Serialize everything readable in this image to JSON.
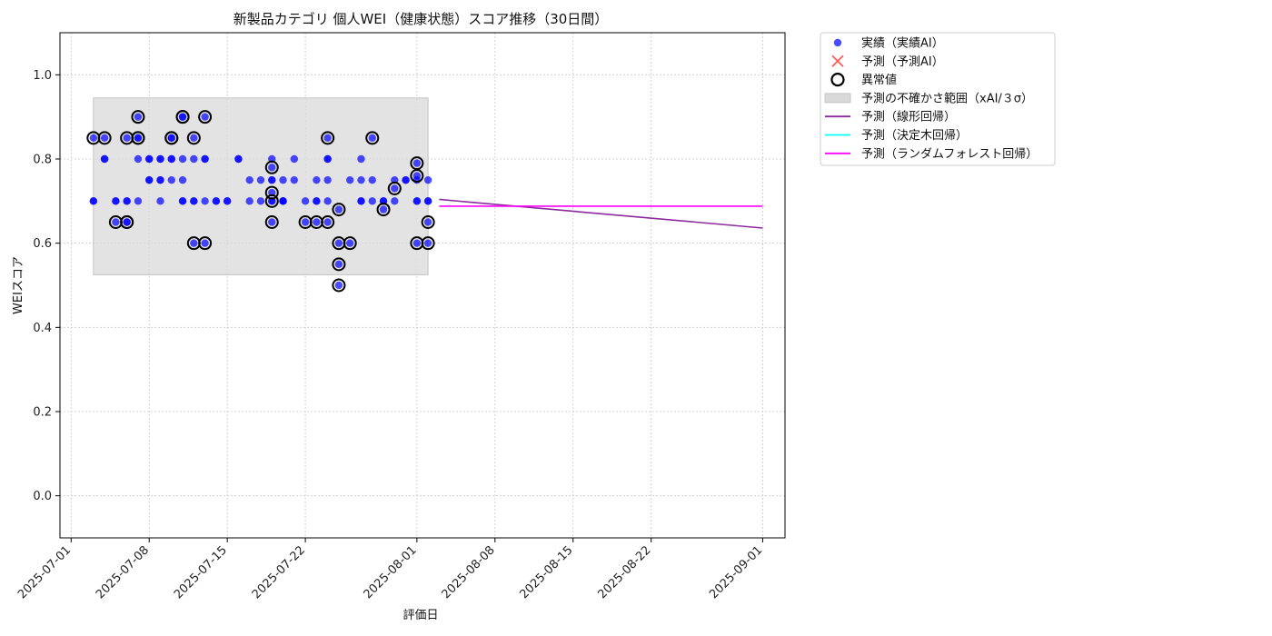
{
  "chart_data": {
    "type": "scatter",
    "title": "新製品カテゴリ 個人WEI（健康状態）スコア推移（30日間）",
    "xlabel": "評価日",
    "ylabel": "WEIスコア",
    "xlim": [
      "2025-06-30",
      "2025-09-03"
    ],
    "ylim": [
      -0.1,
      1.1
    ],
    "x_ticks": [
      "2025-07-01",
      "2025-07-08",
      "2025-07-15",
      "2025-07-22",
      "2025-08-01",
      "2025-08-08",
      "2025-08-15",
      "2025-08-22",
      "2025-09-01"
    ],
    "y_ticks": [
      0.0,
      0.2,
      0.4,
      0.6,
      0.8,
      1.0
    ],
    "y_tick_labels": [
      "0.0",
      "0.2",
      "0.4",
      "0.6",
      "0.8",
      "1.0"
    ],
    "grid": true,
    "legend_position": "outside-top-right",
    "colors": {
      "actual": "#0000ff",
      "prediction_ai": "#ff3333",
      "anomaly": "#000000",
      "uncertainty": "#d9d9d9",
      "linear": "#8b2a9e",
      "tree": "#00ffff",
      "forest": "#ff00ff"
    },
    "legend": [
      {
        "key": "actual",
        "label": "実績（実績AI）"
      },
      {
        "key": "prediction_ai",
        "label": "予測（予測AI）"
      },
      {
        "key": "anomaly",
        "label": "異常値"
      },
      {
        "key": "uncertainty",
        "label": "予測の不確かさ範囲（xAI/３σ）"
      },
      {
        "key": "linear",
        "label": "予測（線形回帰）"
      },
      {
        "key": "tree",
        "label": "予測（決定木回帰）"
      },
      {
        "key": "forest",
        "label": "予測（ランダムフォレスト回帰）"
      }
    ],
    "uncertainty_band": {
      "x": [
        "2025-07-03",
        "2025-08-02"
      ],
      "y": [
        0.525,
        0.945
      ]
    },
    "series": [
      {
        "key": "actual",
        "points": [
          [
            "2025-07-03",
            0.7
          ],
          [
            "2025-07-03",
            0.85
          ],
          [
            "2025-07-03",
            0.7
          ],
          [
            "2025-07-04",
            0.8
          ],
          [
            "2025-07-04",
            0.8
          ],
          [
            "2025-07-04",
            0.85
          ],
          [
            "2025-07-05",
            0.7
          ],
          [
            "2025-07-05",
            0.65
          ],
          [
            "2025-07-05",
            0.7
          ],
          [
            "2025-07-06",
            0.7
          ],
          [
            "2025-07-06",
            0.65
          ],
          [
            "2025-07-06",
            0.85
          ],
          [
            "2025-07-06",
            0.65
          ],
          [
            "2025-07-06",
            0.7
          ],
          [
            "2025-07-07",
            0.85
          ],
          [
            "2025-07-07",
            0.8
          ],
          [
            "2025-07-07",
            0.9
          ],
          [
            "2025-07-07",
            0.85
          ],
          [
            "2025-07-07",
            0.7
          ],
          [
            "2025-07-08",
            0.75
          ],
          [
            "2025-07-08",
            0.75
          ],
          [
            "2025-07-08",
            0.8
          ],
          [
            "2025-07-08",
            0.8
          ],
          [
            "2025-07-09",
            0.7
          ],
          [
            "2025-07-09",
            0.75
          ],
          [
            "2025-07-09",
            0.8
          ],
          [
            "2025-07-09",
            0.75
          ],
          [
            "2025-07-09",
            0.8
          ],
          [
            "2025-07-10",
            0.85
          ],
          [
            "2025-07-10",
            0.75
          ],
          [
            "2025-07-10",
            0.8
          ],
          [
            "2025-07-10",
            0.85
          ],
          [
            "2025-07-10",
            0.8
          ],
          [
            "2025-07-11",
            0.9
          ],
          [
            "2025-07-11",
            0.75
          ],
          [
            "2025-07-11",
            0.7
          ],
          [
            "2025-07-11",
            0.7
          ],
          [
            "2025-07-11",
            0.9
          ],
          [
            "2025-07-11",
            0.8
          ],
          [
            "2025-07-12",
            0.7
          ],
          [
            "2025-07-12",
            0.6
          ],
          [
            "2025-07-12",
            0.7
          ],
          [
            "2025-07-12",
            0.85
          ],
          [
            "2025-07-12",
            0.8
          ],
          [
            "2025-07-13",
            0.8
          ],
          [
            "2025-07-13",
            0.9
          ],
          [
            "2025-07-13",
            0.8
          ],
          [
            "2025-07-13",
            0.6
          ],
          [
            "2025-07-13",
            0.7
          ],
          [
            "2025-07-14",
            0.7
          ],
          [
            "2025-07-14",
            0.7
          ],
          [
            "2025-07-15",
            0.7
          ],
          [
            "2025-07-15",
            0.7
          ],
          [
            "2025-07-16",
            0.8
          ],
          [
            "2025-07-16",
            0.8
          ],
          [
            "2025-07-17",
            0.75
          ],
          [
            "2025-07-17",
            0.7
          ],
          [
            "2025-07-18",
            0.75
          ],
          [
            "2025-07-18",
            0.7
          ],
          [
            "2025-07-19",
            0.75
          ],
          [
            "2025-07-19",
            0.75
          ],
          [
            "2025-07-19",
            0.8
          ],
          [
            "2025-07-19",
            0.7
          ],
          [
            "2025-07-19",
            0.78
          ],
          [
            "2025-07-19",
            0.72
          ],
          [
            "2025-07-19",
            0.7
          ],
          [
            "2025-07-19",
            0.65
          ],
          [
            "2025-07-20",
            0.75
          ],
          [
            "2025-07-20",
            0.7
          ],
          [
            "2025-07-20",
            0.7
          ],
          [
            "2025-07-20",
            0.7
          ],
          [
            "2025-07-21",
            0.75
          ],
          [
            "2025-07-21",
            0.8
          ],
          [
            "2025-07-22",
            0.7
          ],
          [
            "2025-07-22",
            0.65
          ],
          [
            "2025-07-23",
            0.7
          ],
          [
            "2025-07-23",
            0.75
          ],
          [
            "2025-07-23",
            0.65
          ],
          [
            "2025-07-23",
            0.7
          ],
          [
            "2025-07-24",
            0.7
          ],
          [
            "2025-07-24",
            0.65
          ],
          [
            "2025-07-24",
            0.85
          ],
          [
            "2025-07-24",
            0.8
          ],
          [
            "2025-07-24",
            0.75
          ],
          [
            "2025-07-24",
            0.8
          ],
          [
            "2025-07-25",
            0.68
          ],
          [
            "2025-07-25",
            0.6
          ],
          [
            "2025-07-25",
            0.55
          ],
          [
            "2025-07-25",
            0.5
          ],
          [
            "2025-07-26",
            0.6
          ],
          [
            "2025-07-26",
            0.75
          ],
          [
            "2025-07-27",
            0.8
          ],
          [
            "2025-07-27",
            0.75
          ],
          [
            "2025-07-27",
            0.7
          ],
          [
            "2025-07-27",
            0.7
          ],
          [
            "2025-07-28",
            0.75
          ],
          [
            "2025-07-28",
            0.85
          ],
          [
            "2025-07-28",
            0.7
          ],
          [
            "2025-07-29",
            0.7
          ],
          [
            "2025-07-29",
            0.68
          ],
          [
            "2025-07-29",
            0.7
          ],
          [
            "2025-07-30",
            0.73
          ],
          [
            "2025-07-30",
            0.75
          ],
          [
            "2025-07-30",
            0.7
          ],
          [
            "2025-07-31",
            0.75
          ],
          [
            "2025-07-31",
            0.75
          ],
          [
            "2025-08-01",
            0.75
          ],
          [
            "2025-08-01",
            0.76
          ],
          [
            "2025-08-01",
            0.79
          ],
          [
            "2025-08-01",
            0.7
          ],
          [
            "2025-08-01",
            0.6
          ],
          [
            "2025-08-01",
            0.7
          ],
          [
            "2025-08-02",
            0.6
          ],
          [
            "2025-08-02",
            0.65
          ],
          [
            "2025-08-02",
            0.7
          ],
          [
            "2025-08-02",
            0.75
          ],
          [
            "2025-08-02",
            0.7
          ]
        ]
      },
      {
        "key": "anomaly",
        "points": [
          [
            "2025-07-03",
            0.85
          ],
          [
            "2025-07-04",
            0.85
          ],
          [
            "2025-07-05",
            0.65
          ],
          [
            "2025-07-06",
            0.65
          ],
          [
            "2025-07-06",
            0.85
          ],
          [
            "2025-07-06",
            0.65
          ],
          [
            "2025-07-07",
            0.85
          ],
          [
            "2025-07-07",
            0.9
          ],
          [
            "2025-07-07",
            0.85
          ],
          [
            "2025-07-10",
            0.85
          ],
          [
            "2025-07-10",
            0.85
          ],
          [
            "2025-07-11",
            0.9
          ],
          [
            "2025-07-11",
            0.9
          ],
          [
            "2025-07-12",
            0.6
          ],
          [
            "2025-07-12",
            0.85
          ],
          [
            "2025-07-13",
            0.9
          ],
          [
            "2025-07-13",
            0.6
          ],
          [
            "2025-07-19",
            0.78
          ],
          [
            "2025-07-19",
            0.72
          ],
          [
            "2025-07-19",
            0.7
          ],
          [
            "2025-07-19",
            0.65
          ],
          [
            "2025-07-22",
            0.65
          ],
          [
            "2025-07-23",
            0.65
          ],
          [
            "2025-07-24",
            0.65
          ],
          [
            "2025-07-24",
            0.85
          ],
          [
            "2025-07-25",
            0.68
          ],
          [
            "2025-07-25",
            0.6
          ],
          [
            "2025-07-25",
            0.55
          ],
          [
            "2025-07-25",
            0.5
          ],
          [
            "2025-07-26",
            0.6
          ],
          [
            "2025-07-28",
            0.85
          ],
          [
            "2025-07-29",
            0.68
          ],
          [
            "2025-07-30",
            0.73
          ],
          [
            "2025-08-01",
            0.79
          ],
          [
            "2025-08-01",
            0.76
          ],
          [
            "2025-08-01",
            0.6
          ],
          [
            "2025-08-02",
            0.65
          ],
          [
            "2025-08-02",
            0.6
          ]
        ]
      },
      {
        "key": "linear",
        "line": [
          [
            "2025-08-03",
            0.704
          ],
          [
            "2025-09-01",
            0.636
          ]
        ]
      },
      {
        "key": "forest",
        "line": [
          [
            "2025-08-03",
            0.688
          ],
          [
            "2025-09-01",
            0.688
          ]
        ]
      }
    ]
  }
}
